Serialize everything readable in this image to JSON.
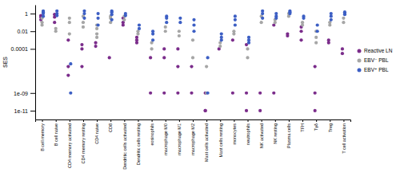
{
  "chart_data": {
    "type": "scatter",
    "log": "y",
    "y_label": "SES",
    "categories": [
      "B cell memory",
      "B cell naive",
      "CD4 memory activated",
      "CD4 memory resting",
      "CD4 naive",
      "CD8",
      "Dendritic cells activated",
      "Dendritic cells resting",
      "eosinophils",
      "macrophage M0",
      "macrophage M1",
      "macrophage M2",
      "Mast cells activated",
      "Mast cells resting",
      "monocytes",
      "neutrophils",
      "NK activated",
      "NK resting",
      "Plasma cells",
      "TFH",
      "Tγδ",
      "Treg",
      "T cell activation"
    ],
    "ylim": [
      1e-12,
      10
    ],
    "yticks": [
      {
        "value": 1e-11,
        "label": "1e-11"
      },
      {
        "value": 1e-09,
        "label": "1e-09"
      },
      0.0001,
      0.01,
      1
    ],
    "legend": "right",
    "series": [
      {
        "name": "Reactive LN",
        "color": "#7b2d8b",
        "marker": "circle",
        "values": [
          [
            0.6,
            0.4,
            0.2
          ],
          [
            0.8,
            0.4,
            0.1
          ],
          [
            0.001,
            1e-06,
            1e-07
          ],
          [
            0.0003,
            0.0001,
            1e-06
          ],
          [
            0.0005,
            0.0002
          ],
          [
            1e-05
          ],
          [
            0.3,
            0.1,
            0.05
          ],
          [
            0.002,
            0.001,
            0.0005
          ],
          [
            1e-05,
            1e-09
          ],
          [
            0.0001,
            1e-05,
            1e-09
          ],
          [
            0.0001,
            1e-06,
            1e-09
          ],
          [
            1e-06,
            1e-09
          ],
          [
            1e-09,
            1e-11,
            1e-11
          ],
          [
            0.0001
          ],
          [
            0.001,
            1e-09
          ],
          [
            0.0003,
            1e-09,
            1e-11
          ],
          [
            1e-09,
            1e-11
          ],
          [
            0.05,
            1e-09
          ],
          [
            0.005,
            0.003
          ],
          [
            0.03,
            0.01,
            0.001
          ],
          [
            1e-06,
            1e-09,
            1e-11
          ],
          [
            0.001,
            0.0005
          ],
          [
            0.0001,
            3e-05
          ]
        ]
      },
      {
        "name": "EBV⁻ PBL",
        "color": "#a6a6a6",
        "marker": "circle",
        "values": [
          [
            0.1,
            0.05,
            0.3
          ],
          [
            0.02,
            0.01
          ],
          [
            0.3,
            0.1,
            0.005
          ],
          [
            0.5,
            0.1,
            0.03
          ],
          [
            0.05,
            0.02,
            0.005,
            0.002
          ],
          [
            0.5,
            0.3,
            0.1
          ],
          [
            0.5,
            0.2
          ],
          [
            0.01,
            0.005
          ],
          [
            0.0005,
            0.0001
          ],
          [
            0.03,
            0.01
          ],
          [
            0.01,
            0.003
          ],
          [
            0.001,
            1e-05
          ],
          [
            1e-06,
            1e-09
          ],
          [
            0.0005,
            0.0002
          ],
          [
            0.01,
            0.005
          ],
          [
            1e-05,
            0.0001
          ],
          [
            0.5,
            0.1
          ],
          [
            0.2,
            0.1
          ],
          [
            1,
            0.5
          ],
          [
            0.1,
            0.05
          ],
          [
            0.01,
            0.002,
            0.0005
          ],
          [
            0.1,
            0.05
          ],
          [
            0.3,
            0.1
          ]
        ]
      },
      {
        "name": "EBV⁺ PBL",
        "color": "#3d5fc4",
        "marker": "circle",
        "values": [
          [
            2,
            1.5,
            1,
            0.5
          ],
          [
            2,
            1,
            0.6
          ],
          [
            2e-06,
            1e-09
          ],
          [
            2,
            1,
            0.3
          ],
          [
            1,
            0.3,
            0.05
          ],
          [
            2,
            1.5,
            0.8,
            0.2
          ],
          [
            1,
            0.6
          ],
          [
            0.05,
            0.02
          ],
          [
            0.01,
            0.005,
            0.001
          ],
          [
            0.5,
            0.3,
            0.1
          ],
          [
            0.3,
            0.1
          ],
          [
            0.2,
            0.05,
            0.01
          ],
          [
            1e-05,
            1e-09
          ],
          [
            0.005,
            0.002,
            0.001
          ],
          [
            0.5,
            0.2,
            0.05
          ],
          [
            0.002,
            0.001,
            0.0005
          ],
          [
            2,
            1,
            0.3
          ],
          [
            1,
            0.5,
            0.3
          ],
          [
            2,
            1.5,
            1
          ],
          [
            0.3,
            0.5
          ],
          [
            0.05,
            0.01
          ],
          [
            1,
            0.5,
            0.2
          ],
          [
            1.5,
            1,
            0.8
          ]
        ]
      }
    ]
  }
}
